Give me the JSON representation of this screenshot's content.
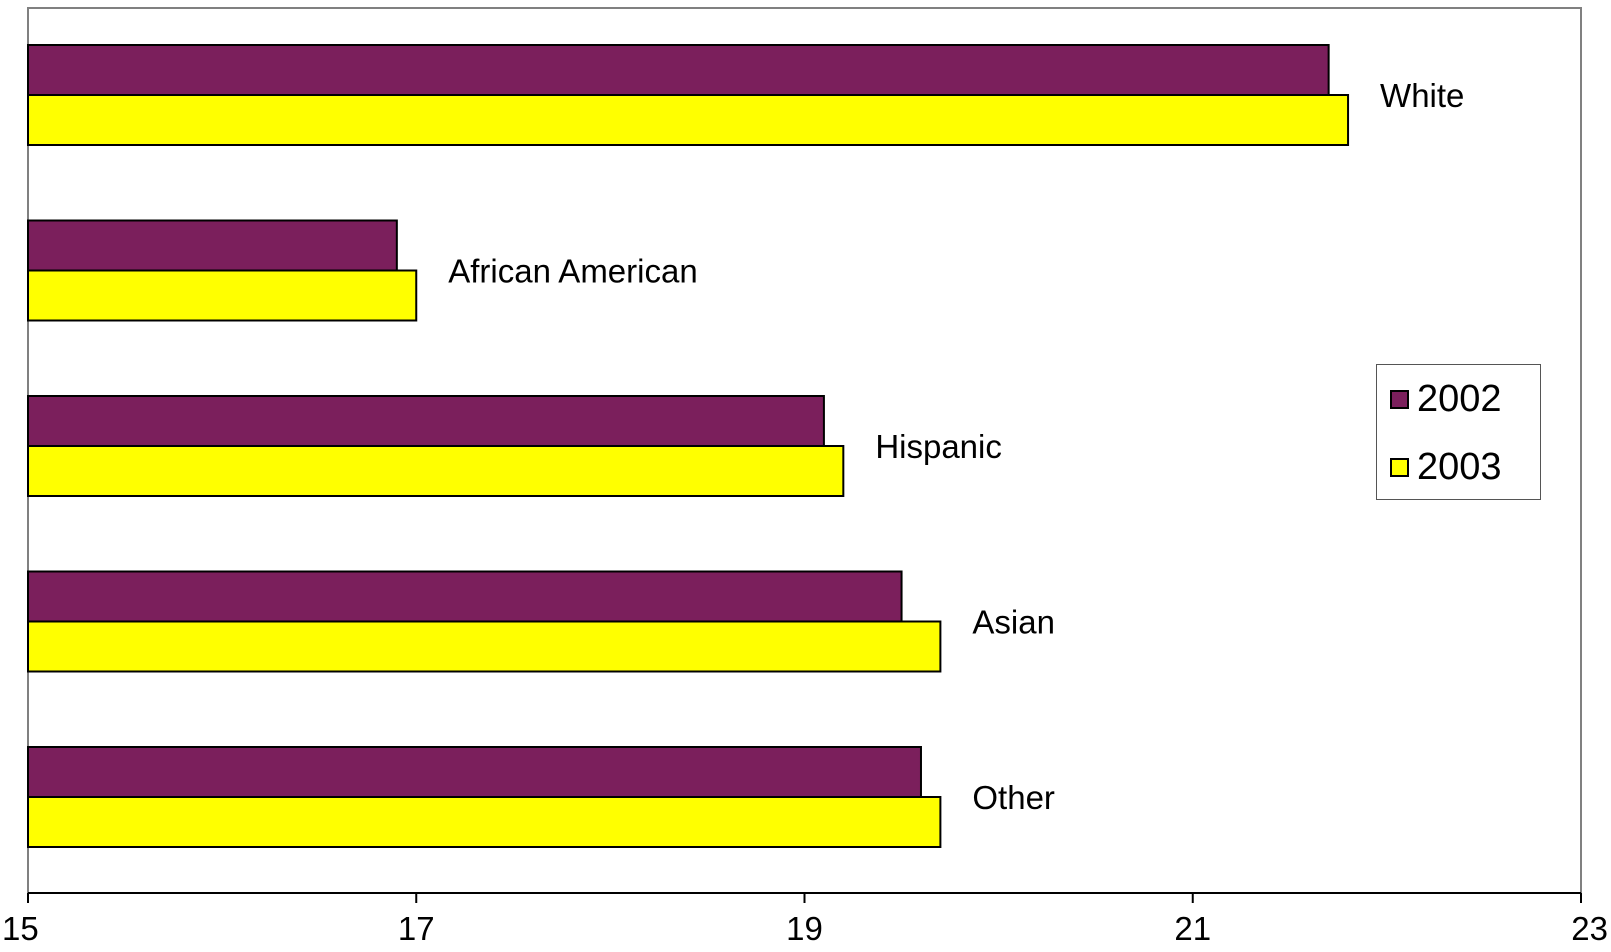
{
  "chart_data": {
    "type": "bar",
    "orientation": "horizontal",
    "title": "",
    "xlabel": "",
    "ylabel": "",
    "categories": [
      "White",
      "African American",
      "Hispanic",
      "Asian",
      "Other"
    ],
    "series": [
      {
        "name": "2002",
        "color": "#7B1F5C",
        "values": [
          21.7,
          16.9,
          19.1,
          19.5,
          19.6
        ]
      },
      {
        "name": "2003",
        "color": "#FFFF00",
        "values": [
          21.8,
          17.0,
          19.2,
          19.7,
          19.7
        ]
      }
    ],
    "xlim": [
      15,
      23
    ],
    "xticks": [
      "15",
      "17",
      "19",
      "21",
      "23"
    ],
    "grid": false,
    "legend_position": "right"
  }
}
